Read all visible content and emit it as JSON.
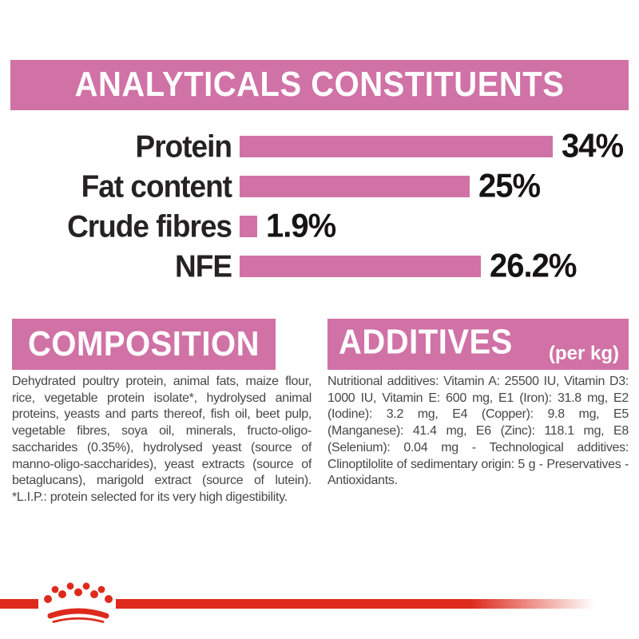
{
  "colors": {
    "pink": "#d072a5",
    "red": "#dd2a1c",
    "heading_text": "#ffffff",
    "label_text": "#262223",
    "body_text": "#474747"
  },
  "header": {
    "title": "ANALYTICALS CONSTITUENTS"
  },
  "chart_data": {
    "type": "bar",
    "orientation": "horizontal",
    "title": "ANALYTICALS CONSTITUENTS",
    "categories": [
      "Protein",
      "Fat content",
      "Crude fibres",
      "NFE"
    ],
    "values": [
      34,
      25,
      1.9,
      26.2
    ],
    "value_labels": [
      "34%",
      "25%",
      "1.9%",
      "26.2%"
    ],
    "unit": "%",
    "xlim": [
      0,
      34
    ],
    "bar_color": "#d072a5",
    "grid": false,
    "legend": false
  },
  "sections": {
    "composition": {
      "title": "COMPOSITION",
      "body": "Dehydrated poultry protein, animal fats, maize flour, rice, vegetable protein isolate*, hydrolysed animal proteins, yeasts and parts thereof, fish oil, beet pulp, vegetable fibres, soya oil, minerals, fructo-oligo-saccharides (0.35%), hydrolysed yeast (source of manno-oligo-saccharides), yeast extracts (source of betaglucans), marigold extract (source of lutein). *L.I.P.: protein selected for its very high digestibility."
    },
    "additives": {
      "title": "ADDITIVES",
      "subtitle": "(per kg)",
      "body": "Nutritional additives: Vitamin A: 25500 IU, Vitamin D3: 1000 IU, Vitamin E: 600 mg, E1 (Iron): 31.8 mg, E2 (Iodine): 3.2 mg, E4 (Copper): 9.8 mg, E5 (Manganese): 41.4 mg, E6 (Zinc): 118.1 mg, E8 (Selenium): 0.04 mg - Technological additives: Clinoptilolite of sedimentary origin: 5 g - Preservatives - Antioxidants."
    }
  },
  "footer": {
    "logo": "royal-canin-crown"
  }
}
